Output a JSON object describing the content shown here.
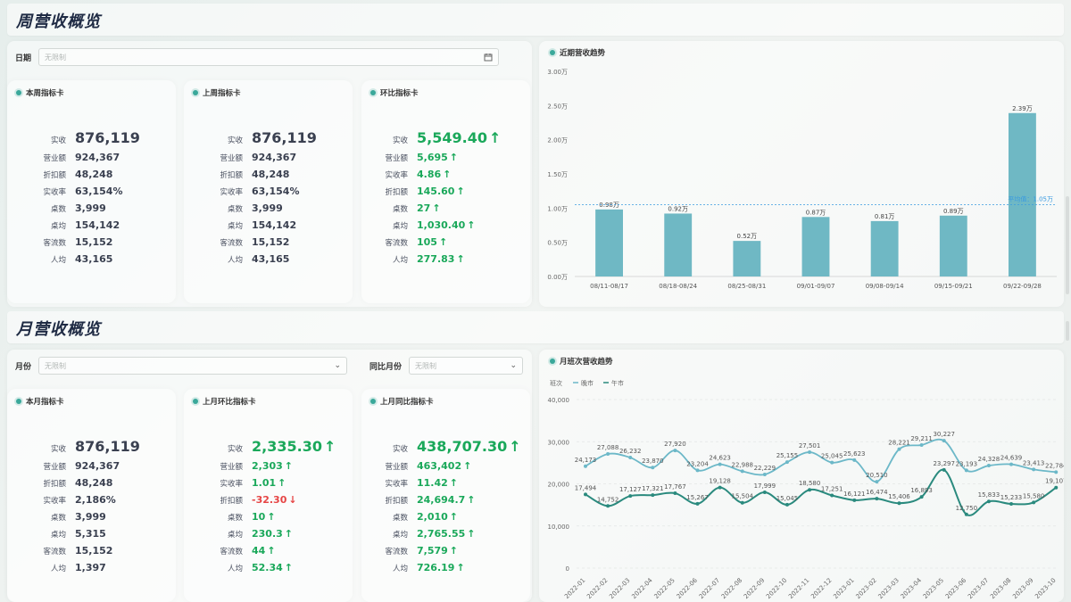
{
  "weekly": {
    "title": "周营收概览",
    "filter": {
      "label": "日期",
      "placeholder": "无限制"
    },
    "cards": [
      {
        "title": "本周指标卡",
        "metrics": [
          {
            "label": "实收",
            "value": "876,119"
          },
          {
            "label": "营业额",
            "value": "924,367"
          },
          {
            "label": "折扣额",
            "value": "48,248"
          },
          {
            "label": "实收率",
            "value": "63,154%"
          },
          {
            "label": "桌数",
            "value": "3,999"
          },
          {
            "label": "桌均",
            "value": "154,142"
          },
          {
            "label": "客流数",
            "value": "15,152"
          },
          {
            "label": "人均",
            "value": "43,165"
          }
        ]
      },
      {
        "title": "上周指标卡",
        "metrics": [
          {
            "label": "实收",
            "value": "876,119"
          },
          {
            "label": "营业额",
            "value": "924,367"
          },
          {
            "label": "折扣额",
            "value": "48,248"
          },
          {
            "label": "实收率",
            "value": "63,154%"
          },
          {
            "label": "桌数",
            "value": "3,999"
          },
          {
            "label": "桌均",
            "value": "154,142"
          },
          {
            "label": "客流数",
            "value": "15,152"
          },
          {
            "label": "人均",
            "value": "43,165"
          }
        ]
      },
      {
        "title": "环比指标卡",
        "metrics": [
          {
            "label": "实收",
            "value": "5,549.40",
            "dir": "up"
          },
          {
            "label": "营业额",
            "value": "5,695",
            "dir": "up"
          },
          {
            "label": "实收率",
            "value": "4.86",
            "dir": "up"
          },
          {
            "label": "折扣额",
            "value": "145.60",
            "dir": "up"
          },
          {
            "label": "桌数",
            "value": "27",
            "dir": "up"
          },
          {
            "label": "桌均",
            "value": "1,030.40",
            "dir": "up"
          },
          {
            "label": "客流数",
            "value": "105",
            "dir": "up"
          },
          {
            "label": "人均",
            "value": "277.83",
            "dir": "up"
          }
        ]
      }
    ]
  },
  "weekly_chart": {
    "title": "近期营收趋势",
    "avg_label": "平均值：1.05万",
    "chart_data": {
      "type": "bar",
      "categories": [
        "08/11-08/17",
        "08/18-08/24",
        "08/25-08/31",
        "09/01-09/07",
        "09/08-09/14",
        "09/15-09/21",
        "09/22-09/28"
      ],
      "values": [
        0.98,
        0.92,
        0.52,
        0.87,
        0.81,
        0.89,
        2.39
      ],
      "value_labels": [
        "0.98万",
        "0.92万",
        "0.52万",
        "0.87万",
        "0.81万",
        "0.89万",
        "2.39万"
      ],
      "average": 1.05,
      "ylim": [
        0,
        3
      ],
      "yticks": [
        "0.00万",
        "0.50万",
        "1.00万",
        "1.50万",
        "2.00万",
        "2.50万",
        "3.00万"
      ],
      "color": "#6fb8c4"
    }
  },
  "monthly": {
    "title": "月营收概览",
    "filter1": {
      "label": "月份",
      "placeholder": "无限制"
    },
    "filter2": {
      "label": "同比月份",
      "placeholder": "无限制"
    },
    "cards": [
      {
        "title": "本月指标卡",
        "metrics": [
          {
            "label": "实收",
            "value": "876,119"
          },
          {
            "label": "营业额",
            "value": "924,367"
          },
          {
            "label": "折扣额",
            "value": "48,248"
          },
          {
            "label": "实收率",
            "value": "2,186%"
          },
          {
            "label": "桌数",
            "value": "3,999"
          },
          {
            "label": "桌均",
            "value": "5,315"
          },
          {
            "label": "客流数",
            "value": "15,152"
          },
          {
            "label": "人均",
            "value": "1,397"
          }
        ]
      },
      {
        "title": "上月环比指标卡",
        "metrics": [
          {
            "label": "实收",
            "value": "2,335.30",
            "dir": "up"
          },
          {
            "label": "营业额",
            "value": "2,303",
            "dir": "up"
          },
          {
            "label": "实收率",
            "value": "1.01",
            "dir": "up"
          },
          {
            "label": "折扣额",
            "value": "-32.30",
            "dir": "down"
          },
          {
            "label": "桌数",
            "value": "10",
            "dir": "up"
          },
          {
            "label": "桌均",
            "value": "230.3",
            "dir": "up"
          },
          {
            "label": "客流数",
            "value": "44",
            "dir": "up"
          },
          {
            "label": "人均",
            "value": "52.34",
            "dir": "up"
          }
        ]
      },
      {
        "title": "上月同比指标卡",
        "metrics": [
          {
            "label": "实收",
            "value": "438,707.30",
            "dir": "up"
          },
          {
            "label": "营业额",
            "value": "463,402",
            "dir": "up"
          },
          {
            "label": "实收率",
            "value": "11.42",
            "dir": "up"
          },
          {
            "label": "折扣额",
            "value": "24,694.7",
            "dir": "up"
          },
          {
            "label": "桌数",
            "value": "2,010",
            "dir": "up"
          },
          {
            "label": "桌均",
            "value": "2,765.55",
            "dir": "up"
          },
          {
            "label": "客流数",
            "value": "7,579",
            "dir": "up"
          },
          {
            "label": "人均",
            "value": "726.19",
            "dir": "up"
          }
        ]
      }
    ]
  },
  "monthly_chart": {
    "title": "月班次营收趋势",
    "legend_title": "班次",
    "chart_data": {
      "type": "line",
      "x": [
        "2022-01",
        "2022-02",
        "2022-03",
        "2022-04",
        "2022-05",
        "2022-06",
        "2022-07",
        "2022-08",
        "2022-09",
        "2022-10",
        "2022-11",
        "2022-12",
        "2023-01",
        "2023-02",
        "2023-03",
        "2023-04",
        "2023-05",
        "2023-06",
        "2023-07",
        "2023-08",
        "2023-09",
        "2023-10"
      ],
      "x_labels": [
        "2022-01",
        "2022-02",
        "2022-03",
        "2022-04",
        "2022-05",
        "2022-06",
        "2022-07",
        "2022-08",
        "2022-09",
        "2022-10",
        "2022-11",
        "2022-12",
        "2023-01",
        "2023-02",
        "2023-03",
        "2023-04",
        "2023-05",
        "2023-06",
        "2023-07",
        "2023-08",
        "2023-09",
        "2023-10"
      ],
      "ylim": [
        0,
        40000
      ],
      "yticks": [
        "0",
        "10,000",
        "20,000",
        "30,000",
        "40,000"
      ],
      "series": [
        {
          "name": "晚市",
          "color": "#6cb8c8",
          "values": [
            24173,
            27088,
            26232,
            23870,
            27920,
            23204,
            24623,
            22988,
            22229,
            25155,
            27501,
            25045,
            25623,
            20510,
            28221,
            29211,
            30227,
            23193,
            24328,
            24639,
            23413,
            22784
          ],
          "labels": [
            "24,173",
            "27,088",
            "26,232",
            "23,870",
            "27,920",
            "23,204",
            "24,623",
            "22,988",
            "22,229",
            "25,155",
            "27,501",
            "25,045",
            "25,623",
            "20,510",
            "28,221",
            "29,211",
            "30,227",
            "23,193",
            "24,328",
            "24,639",
            "23,413",
            "22,784"
          ]
        },
        {
          "name": "午市",
          "color": "#2a8a7e",
          "values": [
            17494,
            14752,
            17127,
            17321,
            17767,
            15267,
            19128,
            15504,
            17999,
            15045,
            18580,
            17251,
            16121,
            16474,
            15406,
            16893,
            23297,
            12750,
            15833,
            15233,
            15580,
            19107
          ],
          "labels": [
            "17,494",
            "14,752",
            "17,127",
            "17,321",
            "17,767",
            "15,267",
            "19,128",
            "15,504",
            "17,999",
            "15,045",
            "18,580",
            "17,251",
            "16,121",
            "16,474",
            "15,406",
            "16,893",
            "23,297",
            "12,750",
            "15,833",
            "15,233",
            "15,580",
            "19,107"
          ]
        }
      ]
    }
  }
}
